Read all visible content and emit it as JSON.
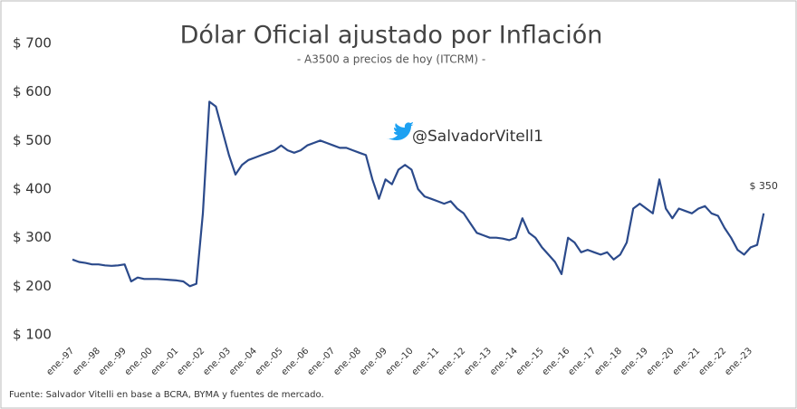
{
  "chart_data": {
    "type": "line",
    "title": "Dólar Oficial ajustado por Inflación",
    "subtitle": "- A3500 a precios de hoy (ITCRM) -",
    "annotation": "@SalvadorVitell1",
    "source": "Fuente: Salvador Vitelli en base a BCRA, BYMA y fuentes de mercado.",
    "categories": [
      "ene.-97",
      null,
      null,
      null,
      "ene.-98",
      null,
      null,
      null,
      "ene.-99",
      null,
      null,
      null,
      "ene.-00",
      null,
      null,
      null,
      "ene.-01",
      null,
      null,
      null,
      "ene.-02",
      null,
      null,
      null,
      "ene.-03",
      null,
      null,
      null,
      "ene.-04",
      null,
      null,
      null,
      "ene.-05",
      null,
      null,
      null,
      "ene.-06",
      null,
      null,
      null,
      "ene.-07",
      null,
      null,
      null,
      "ene.-08",
      null,
      null,
      null,
      "ene.-09",
      null,
      null,
      null,
      "ene.-10",
      null,
      null,
      null,
      "ene.-11",
      null,
      null,
      null,
      "ene.-12",
      null,
      null,
      null,
      "ene.-13",
      null,
      null,
      null,
      "ene.-14",
      null,
      null,
      null,
      "ene.-15",
      null,
      null,
      null,
      "ene.-16",
      null,
      null,
      null,
      "ene.-17",
      null,
      null,
      null,
      "ene.-18",
      null,
      null,
      null,
      "ene.-19",
      null,
      null,
      null,
      "ene.-20",
      null,
      null,
      null,
      "ene.-21",
      null,
      null,
      null,
      "ene.-22",
      null,
      null,
      null,
      "ene.-23",
      null,
      null
    ],
    "series": [
      {
        "name": "A3500 a precios de hoy",
        "color": "#2b4a8b",
        "values": [
          255,
          250,
          248,
          245,
          245,
          243,
          242,
          243,
          245,
          210,
          218,
          215,
          215,
          215,
          214,
          213,
          212,
          210,
          200,
          205,
          350,
          580,
          570,
          520,
          470,
          430,
          450,
          460,
          465,
          470,
          475,
          480,
          490,
          480,
          475,
          480,
          490,
          495,
          500,
          495,
          490,
          485,
          485,
          480,
          475,
          470,
          420,
          380,
          420,
          410,
          440,
          450,
          440,
          400,
          385,
          380,
          375,
          370,
          375,
          360,
          350,
          330,
          310,
          305,
          300,
          300,
          298,
          295,
          300,
          340,
          310,
          300,
          280,
          265,
          250,
          225,
          300,
          290,
          270,
          275,
          270,
          265,
          270,
          255,
          265,
          290,
          360,
          370,
          360,
          350,
          420,
          360,
          340,
          360,
          355,
          350,
          360,
          365,
          350,
          345,
          320,
          300,
          275,
          265,
          280,
          285,
          350
        ],
        "value_labels": [
          null,
          null,
          null,
          null,
          null,
          null,
          null,
          null,
          null,
          null,
          null,
          null,
          null,
          null,
          null,
          null,
          null,
          null,
          null,
          null,
          null,
          null,
          null,
          null,
          null,
          null,
          null,
          null,
          null,
          null,
          null,
          null,
          null,
          null,
          null,
          null,
          null,
          null,
          null,
          null,
          null,
          null,
          null,
          null,
          null,
          null,
          null,
          null,
          null,
          null,
          null,
          null,
          null,
          null,
          null,
          null,
          null,
          null,
          null,
          null,
          null,
          null,
          null,
          null,
          null,
          null,
          null,
          null,
          null,
          null,
          null,
          null,
          null,
          null,
          null,
          null,
          null,
          null,
          null,
          null,
          null,
          null,
          null,
          null,
          null,
          null,
          null,
          null,
          null,
          null,
          null,
          null,
          null,
          null,
          null,
          null,
          null,
          null,
          null,
          null,
          null,
          null,
          null,
          null,
          null,
          null,
          "$ 350"
        ]
      }
    ],
    "ylim": [
      100,
      700
    ],
    "yticks": [
      {
        "value": 100,
        "label": "$ 100"
      },
      {
        "value": 200,
        "label": "$ 200"
      },
      {
        "value": 300,
        "label": "$ 300"
      },
      {
        "value": 400,
        "label": "$ 400"
      },
      {
        "value": 500,
        "label": "$ 500"
      },
      {
        "value": 600,
        "label": "$ 600"
      },
      {
        "value": 700,
        "label": "$ 700"
      }
    ],
    "grid": false
  }
}
